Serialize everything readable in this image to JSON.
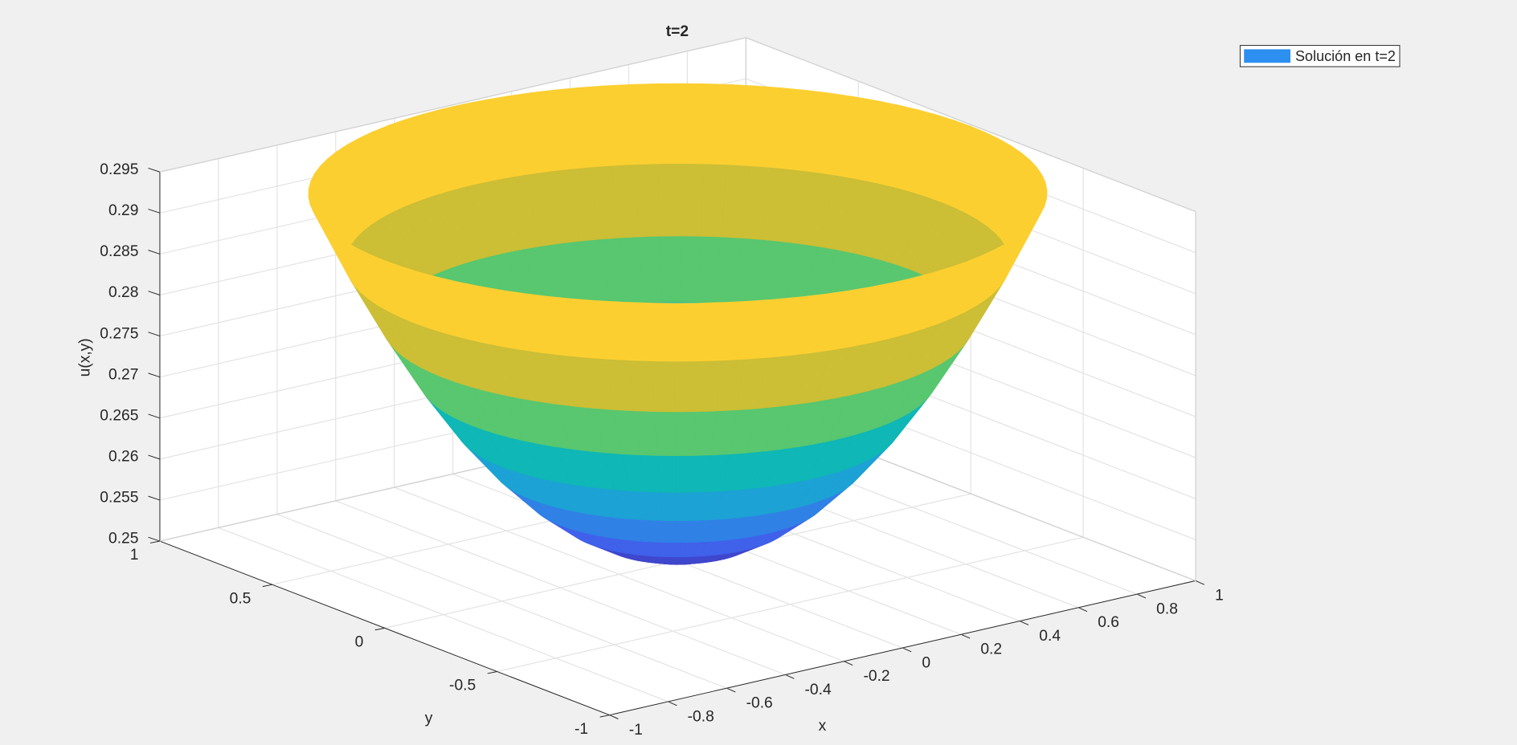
{
  "chart_data": {
    "type": "surface",
    "title": "t=2",
    "xlabel": "x",
    "ylabel": "y",
    "zlabel": "u(x,y)",
    "xlim": [
      -1,
      1
    ],
    "ylim": [
      -1,
      1
    ],
    "zlim": [
      0.25,
      0.295
    ],
    "xticks": [
      -1,
      -0.8,
      -0.6,
      -0.4,
      -0.2,
      0,
      0.2,
      0.4,
      0.6,
      0.8,
      1
    ],
    "yticks": [
      -1,
      -0.5,
      0,
      0.5,
      1
    ],
    "zticks": [
      0.25,
      0.255,
      0.26,
      0.265,
      0.27,
      0.275,
      0.28,
      0.285,
      0.29,
      0.295
    ],
    "grid": true,
    "surface": {
      "r": [
        0,
        0.1,
        0.2,
        0.3,
        0.4,
        0.5,
        0.6,
        0.7,
        0.8,
        0.9,
        1
      ],
      "z": [
        0.2505,
        0.2509,
        0.2523,
        0.2545,
        0.2576,
        0.2616,
        0.2664,
        0.2722,
        0.2789,
        0.2864,
        0.2948
      ]
    },
    "colormap": [
      "#3e26a8",
      "#4065ee",
      "#1f9ddb",
      "#0fb7b6",
      "#5ac76d",
      "#c8be34",
      "#feba3e",
      "#f9fb15"
    ],
    "legend": {
      "label": "Solución en t=2",
      "color": "#2d8ff0",
      "position": "northeast"
    }
  }
}
